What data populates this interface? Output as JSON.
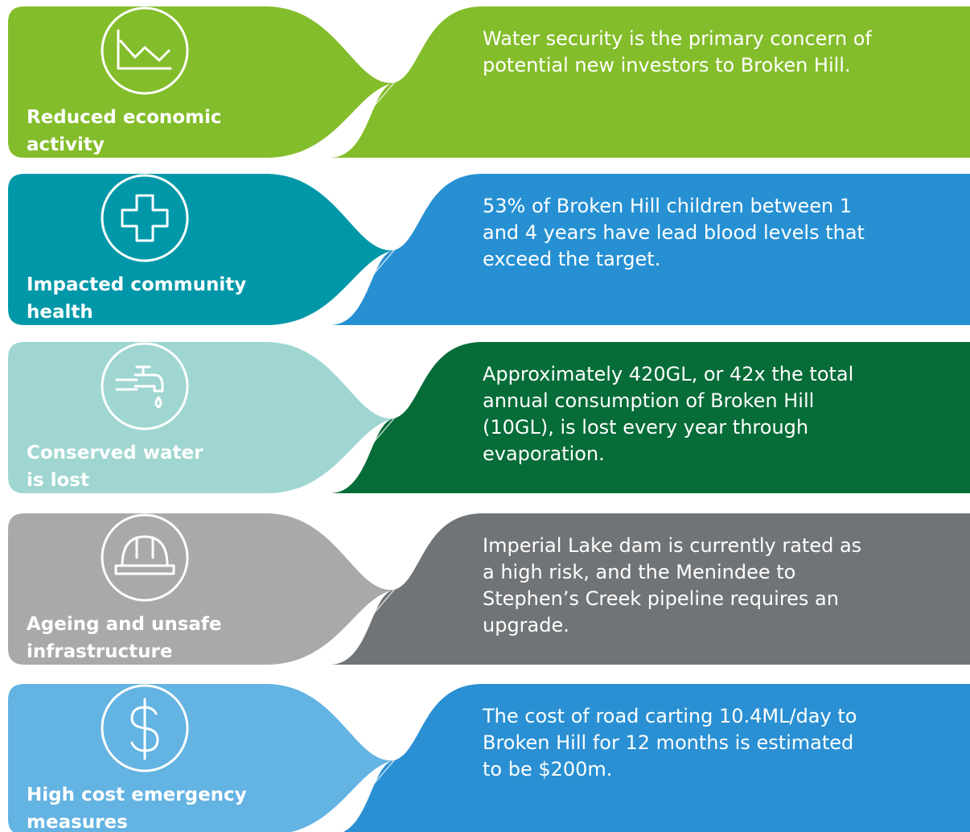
{
  "rows": [
    {
      "label_lines": [
        "Reduced economic",
        "activity"
      ],
      "text_lines": [
        "Water security is the primary concern of",
        "potential new investors to Broken Hill."
      ]
    },
    {
      "label_lines": [
        "Impacted community",
        "health"
      ],
      "text_lines": [
        "53% of Broken Hill children between 1",
        "and 4 years have lead blood levels that",
        "exceed the target."
      ]
    },
    {
      "label_lines": [
        "Conserved water",
        "is lost"
      ],
      "text_lines": [
        "Approximately 420GL, or 42x the total",
        "annual consumption of Broken Hill",
        "(10GL), is lost every year through",
        "evaporation."
      ]
    },
    {
      "label_lines": [
        "Ageing and unsafe",
        "infrastructure"
      ],
      "text_lines": [
        "Imperial Lake dam is currently rated as",
        "a high risk, and the Menindee to",
        "Stephen’s Creek pipeline requires an",
        "upgrade."
      ]
    },
    {
      "label_lines": [
        "High cost emergency",
        "measures"
      ],
      "text_lines": [
        "The cost of road carting 10.4ML/day to",
        "Broken Hill for 12 months is estimated",
        "to be $200m."
      ]
    }
  ]
}
